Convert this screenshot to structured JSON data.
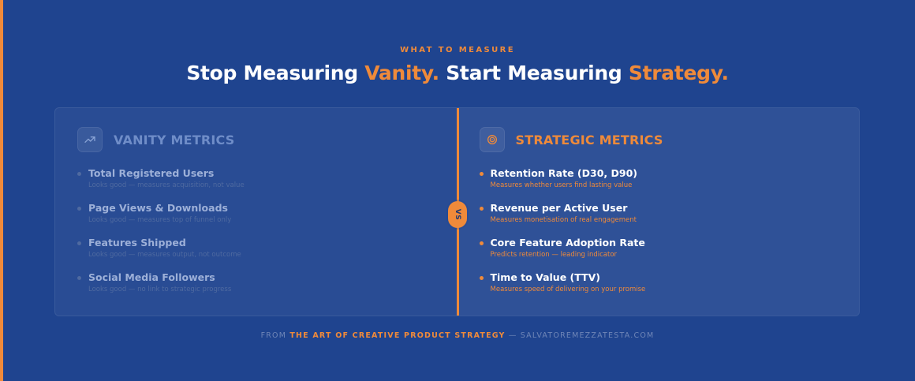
{
  "header": {
    "eyebrow": "WHAT TO MEASURE",
    "title": {
      "part1": "Stop Measuring ",
      "accent1": "Vanity.",
      "part2": " Start Measuring ",
      "accent2": "Strategy."
    }
  },
  "vs": {
    "label": "VS"
  },
  "left": {
    "title": "VANITY METRICS",
    "icon": "trending-up-icon",
    "items": [
      {
        "title": "Total Registered Users",
        "sub": "Looks good — measures acquisition, not value"
      },
      {
        "title": "Page Views & Downloads",
        "sub": "Looks good — measures top of funnel only"
      },
      {
        "title": "Features Shipped",
        "sub": "Looks good — measures output, not outcome"
      },
      {
        "title": "Social Media Followers",
        "sub": "Looks good — no link to strategic progress"
      }
    ]
  },
  "right": {
    "title": "STRATEGIC METRICS",
    "icon": "target-icon",
    "items": [
      {
        "title": "Retention Rate (D30, D90)",
        "sub": "Measures whether users find lasting value"
      },
      {
        "title": "Revenue per Active User",
        "sub": "Measures monetisation of real engagement"
      },
      {
        "title": "Core Feature Adoption Rate",
        "sub": "Predicts retention — leading indicator"
      },
      {
        "title": "Time to Value (TTV)",
        "sub": "Measures speed of delivering on your promise"
      }
    ]
  },
  "footer": {
    "prefix": "FROM ",
    "brand": "THE ART OF CREATIVE PRODUCT STRATEGY",
    "suffix": " — SALVATOREMEZZATESTA.COM"
  },
  "colors": {
    "background": "#1f448f",
    "accent": "#ef8a3a"
  }
}
